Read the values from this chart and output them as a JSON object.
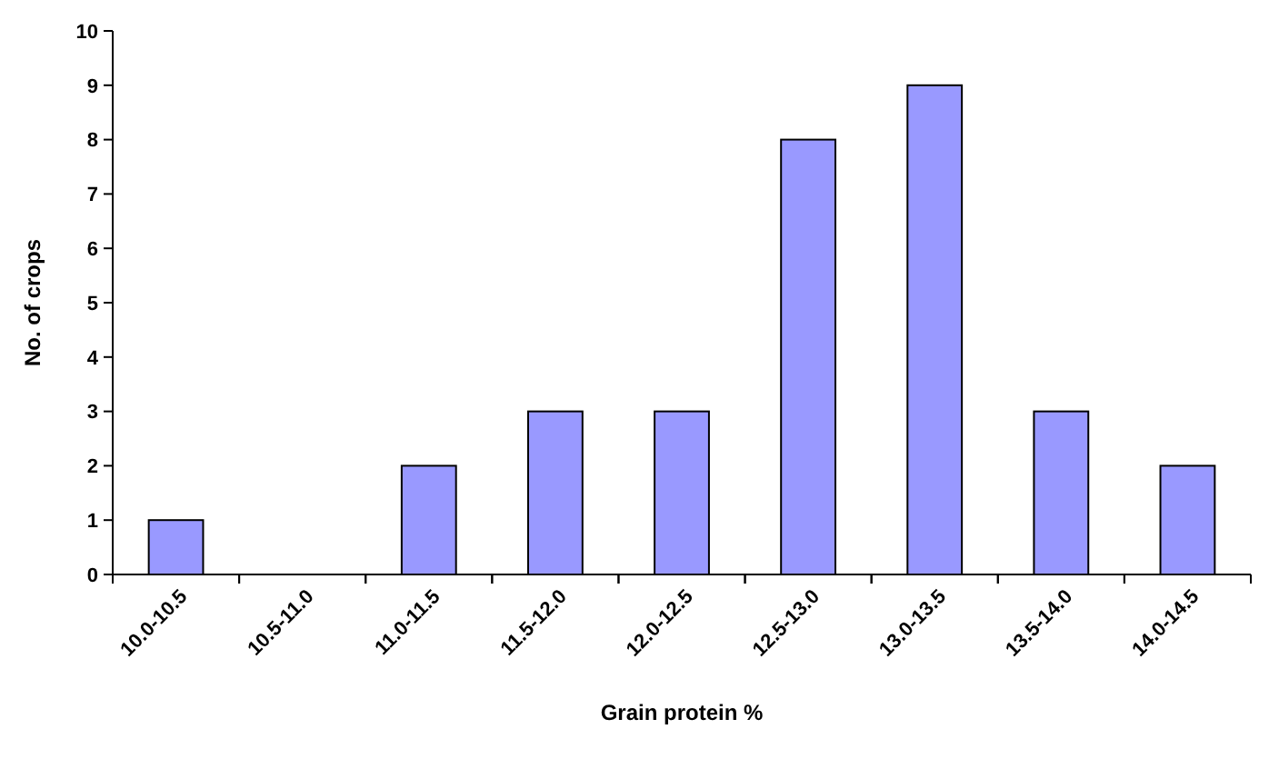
{
  "chart_data": {
    "type": "bar",
    "xlabel": "Grain protein %",
    "ylabel": "No. of crops",
    "categories": [
      "10.0-10.5",
      "10.5-11.0",
      "11.0-11.5",
      "11.5-12.0",
      "12.0-12.5",
      "12.5-13.0",
      "13.0-13.5",
      "13.5-14.0",
      "14.0-14.5"
    ],
    "values": [
      1,
      0,
      2,
      3,
      3,
      8,
      9,
      3,
      2
    ],
    "color": "#9999ff",
    "ylim": [
      0,
      10
    ],
    "yticks": [
      0,
      1,
      2,
      3,
      4,
      5,
      6,
      7,
      8,
      9,
      10
    ],
    "grid": false
  }
}
